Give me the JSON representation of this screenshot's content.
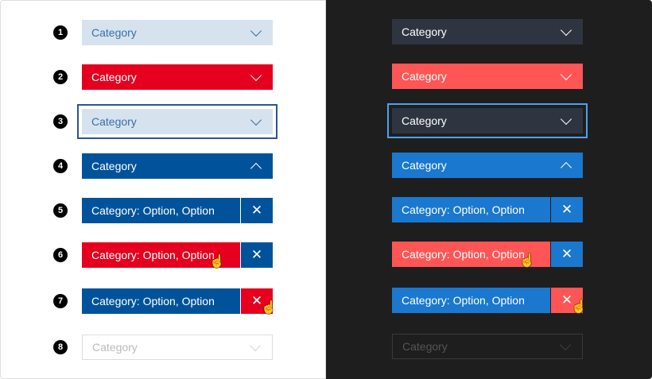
{
  "label": "Category",
  "selected_label": "Category: Option, Option",
  "badges": [
    "1",
    "2",
    "3",
    "4",
    "5",
    "6",
    "7",
    "8"
  ],
  "icons": {
    "chevron": "chevron-down-icon",
    "chevron_up": "chevron-up-icon",
    "clear": "close-icon",
    "cursor": "hand-pointer-icon"
  },
  "clear_glyph": "✕",
  "cursor_glyph": "☝",
  "themes": {
    "light": {
      "default_bg": "#d6e3ef",
      "default_text": "#3a6ea5",
      "hover_bg": "#e4001e",
      "active_bg": "#00539b",
      "focus_outline": "#2c5590",
      "disabled_border": "#dddddd",
      "disabled_text": "#bbbbbb"
    },
    "dark": {
      "default_bg": "#2f3540",
      "default_text": "#ffffff",
      "hover_bg": "#ff5555",
      "active_bg": "#1a78cf",
      "focus_outline": "#4ca2ee",
      "disabled_border": "#3a3a3a",
      "disabled_text": "#555555"
    }
  },
  "states": [
    "default",
    "hover",
    "focus",
    "open",
    "selected",
    "selected-hover",
    "selected-clear-hover",
    "disabled"
  ]
}
